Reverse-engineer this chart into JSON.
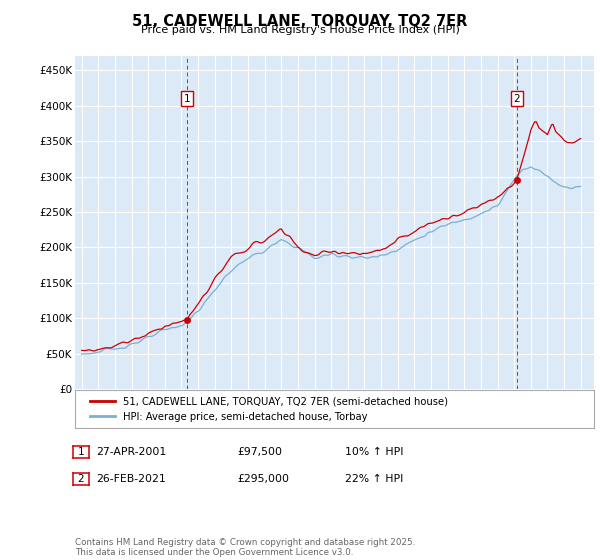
{
  "title": "51, CADEWELL LANE, TORQUAY, TQ2 7ER",
  "subtitle": "Price paid vs. HM Land Registry's House Price Index (HPI)",
  "ylim": [
    0,
    470000
  ],
  "yticks": [
    0,
    50000,
    100000,
    150000,
    200000,
    250000,
    300000,
    350000,
    400000,
    450000
  ],
  "ytick_labels": [
    "£0",
    "£50K",
    "£100K",
    "£150K",
    "£200K",
    "£250K",
    "£300K",
    "£350K",
    "£400K",
    "£450K"
  ],
  "background_color": "#dce9f7",
  "line_color_red": "#cc0000",
  "line_color_blue": "#7ab0d4",
  "vline_color": "#cc0000",
  "sale1_x": 2001.32,
  "sale1_y": 97500,
  "sale2_x": 2021.15,
  "sale2_y": 295000,
  "legend_label_red": "51, CADEWELL LANE, TORQUAY, TQ2 7ER (semi-detached house)",
  "legend_label_blue": "HPI: Average price, semi-detached house, Torbay",
  "transaction1_date": "27-APR-2001",
  "transaction1_price": "£97,500",
  "transaction1_hpi": "10% ↑ HPI",
  "transaction2_date": "26-FEB-2021",
  "transaction2_price": "£295,000",
  "transaction2_hpi": "22% ↑ HPI",
  "footer": "Contains HM Land Registry data © Crown copyright and database right 2025.\nThis data is licensed under the Open Government Licence v3.0.",
  "xlim_left": 1994.6,
  "xlim_right": 2025.8
}
